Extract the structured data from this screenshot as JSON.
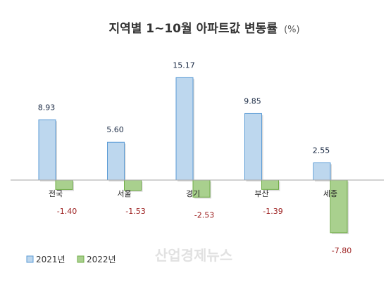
{
  "chart_data": {
    "type": "bar",
    "title": "지역별 1~10월 아파트값 변동률",
    "title_unit": "(%)",
    "categories": [
      "전국",
      "서울",
      "경기",
      "부산",
      "세종"
    ],
    "series": [
      {
        "name": "2021년",
        "values": [
          8.93,
          5.6,
          15.17,
          9.85,
          2.55
        ],
        "color": "#bdd7ee",
        "border": "#5b9bd5"
      },
      {
        "name": "2022년",
        "values": [
          -1.4,
          -1.53,
          -2.53,
          -1.39,
          -7.8
        ],
        "color": "#a9d08e",
        "border": "#70ad47"
      }
    ],
    "value_labels": [
      [
        "8.93",
        "5.60",
        "15.17",
        "9.85",
        "2.55"
      ],
      [
        "-1.40",
        "-1.53",
        "-2.53",
        "-1.39",
        "-7.80"
      ]
    ],
    "negative_label_color": "#9b1c1c",
    "ylim": [
      -8,
      16
    ],
    "grid": false,
    "legend_position": "bottom-left",
    "watermark": "산업경제뉴스"
  }
}
